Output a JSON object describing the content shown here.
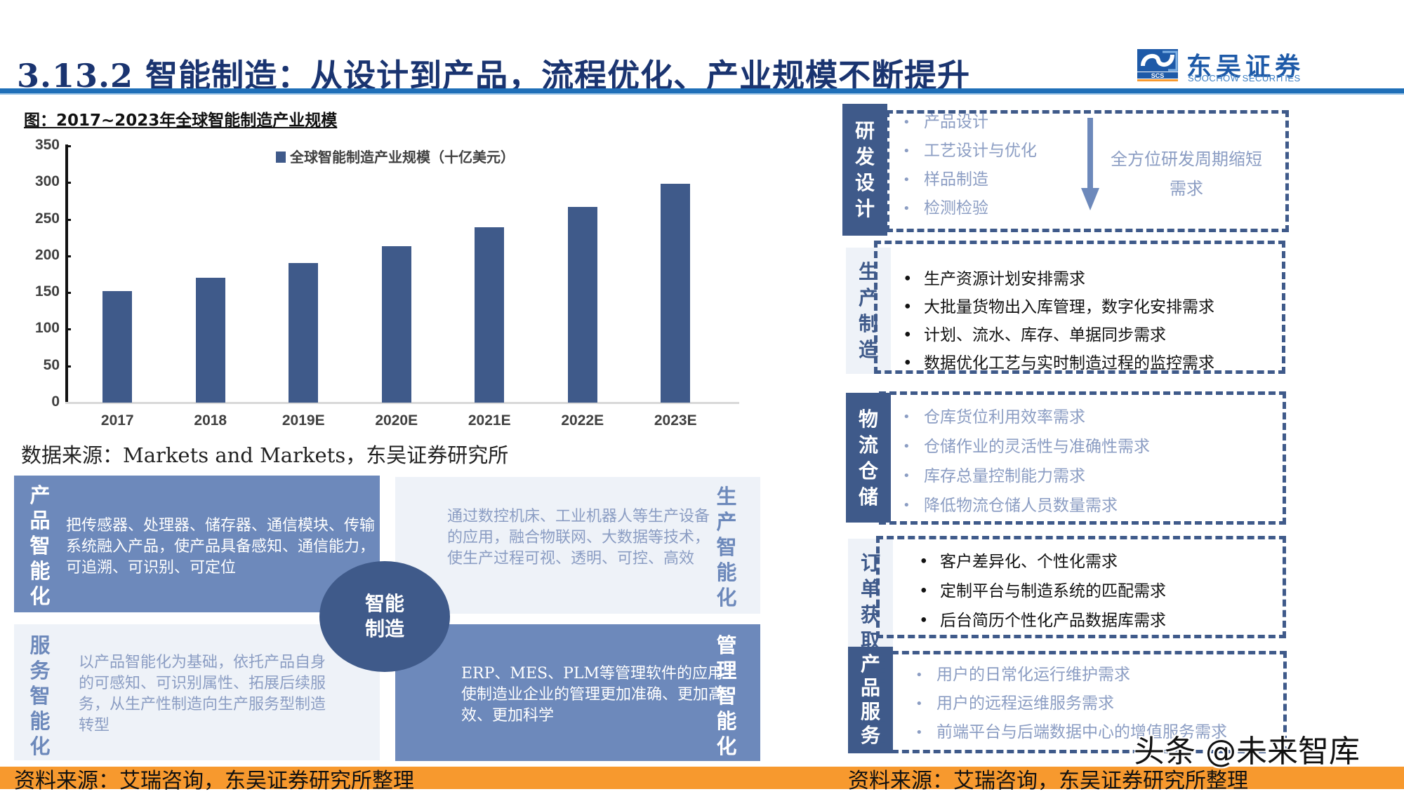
{
  "header": {
    "title": "3.13.2 智能制造：从设计到产品，流程优化、产业规模不断提升",
    "logo": {
      "cn": "东吴证券",
      "en": "SOOCHOW SECURITIES",
      "mark_text": "SCS",
      "colors": {
        "primary": "#1e5aa8",
        "accent": "#f7992e"
      }
    },
    "rule_color": "#1f6fb8"
  },
  "chart_section": {
    "caption": "图：2017~2023年全球智能制造产业规模",
    "source": "数据来源：Markets and Markets，东吴证券研究所"
  },
  "chart_data": {
    "type": "bar",
    "title": "2017~2023年全球智能制造产业规模",
    "categories": [
      "2017",
      "2018",
      "2019E",
      "2020E",
      "2021E",
      "2022E",
      "2023E"
    ],
    "series": [
      {
        "name": "全球智能制造产业规模（十亿美元）",
        "values": [
          152,
          170,
          190,
          213,
          239,
          267,
          298
        ],
        "color": "#3f5a8a"
      }
    ],
    "xlabel": "",
    "ylabel": "",
    "ylim": [
      0,
      350
    ],
    "yticks": [
      "0",
      "50",
      "100",
      "150",
      "200",
      "250",
      "300",
      "350"
    ],
    "grid": false,
    "legend_position": "top"
  },
  "quadrants": {
    "center": "智能制造",
    "items": [
      {
        "label": "产品智能化",
        "text": "把传感器、处理器、储存器、通信模块、传输系统融入产品，使产品具备感知、通信能力，可追溯、可识别、可定位"
      },
      {
        "label": "生产智能化",
        "text": "通过数控机床、工业机器人等生产设备的应用，融合物联网、大数据等技术，使生产过程可视、透明、可控、高效"
      },
      {
        "label": "服务智能化",
        "text": "以产品智能化为基础，依托产品自身的可感知、可识别属性、拓展后续服务，从生产性制造向生产服务型制造转型"
      },
      {
        "label": "管理智能化",
        "text": "ERP、MES、PLM等管理软件的应用使制造业企业的管理更加准确、更加高效、更加科学"
      }
    ],
    "source": "资料来源：艾瑞咨询，东吴证券研究所整理"
  },
  "stages": {
    "items": [
      {
        "label": "研发设计",
        "bullets": [
          "产品设计",
          "工艺设计与优化",
          "样品制造",
          "检测检验"
        ],
        "note": "全方位研发周期缩短需求"
      },
      {
        "label": "生产制造",
        "bullets": [
          "生产资源计划安排需求",
          "大批量货物出入库管理，数字化安排需求",
          "计划、流水、库存、单据同步需求",
          "数据优化工艺与实时制造过程的监控需求"
        ]
      },
      {
        "label": "物流仓储",
        "bullets": [
          "仓库货位利用效率需求",
          "仓储作业的灵活性与准确性需求",
          "库存总量控制能力需求",
          "降低物流仓储人员数量需求"
        ]
      },
      {
        "label": "订单获取",
        "bullets": [
          "客户差异化、个性化需求",
          "定制平台与制造系统的匹配需求",
          "后台简历个性化产品数据库需求"
        ]
      },
      {
        "label": "产品服务",
        "bullets": [
          "用户的日常化运行维护需求",
          "用户的远程运维服务需求",
          "前端平台与后端数据中心的增值服务需求"
        ]
      }
    ],
    "source": "资料来源：艾瑞咨询，东吴证券研究所整理"
  },
  "watermark": "头条 @未来智库",
  "colors": {
    "navy": "#3f5a8a",
    "mid_blue": "#6d89bb",
    "light_bg": "#eef2f8",
    "muted_text": "#8b9dc3",
    "footer_orange": "#f7992e"
  }
}
